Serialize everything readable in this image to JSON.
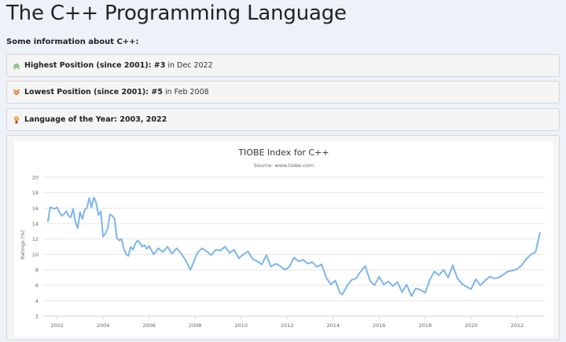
{
  "page": {
    "title": "The C++ Programming Language",
    "intro": "Some information about C++:"
  },
  "info": {
    "highest": {
      "label": "Highest Position (since 2001): #3",
      "detail": "in Dec 2022",
      "icon": "double-chevron-up-icon",
      "color": "#5cb85c"
    },
    "lowest": {
      "label": "Lowest Position (since 2001): #5",
      "detail": "in Feb 2008",
      "icon": "double-chevron-down-icon",
      "color": "#e8711f"
    },
    "loty": {
      "label": "Language of the Year: 2003, 2022",
      "icon": "trophy-icon",
      "color": "#d8a23a"
    }
  },
  "chart_data": {
    "type": "line",
    "title": "TIOBE Index for C++",
    "subtitle": "Source: www.tiobe.com",
    "ylabel": "Ratings (%)",
    "xlabel": "",
    "xlim": [
      2001.4,
      2023.2
    ],
    "ylim": [
      2,
      20
    ],
    "yticks": [
      2,
      4,
      6,
      8,
      10,
      12,
      14,
      16,
      18,
      20
    ],
    "xticks": [
      2002,
      2004,
      2006,
      2008,
      2010,
      2012,
      2014,
      2016,
      2018,
      2020,
      2022
    ],
    "grid": true,
    "legend": "none",
    "line_color": "#7cb5ec",
    "series": [
      {
        "x": [
          2001.6,
          2001.7,
          2001.8,
          2001.9,
          2002.0,
          2002.1,
          2002.2,
          2002.3,
          2002.4,
          2002.5,
          2002.6,
          2002.7,
          2002.8,
          2002.9,
          2003.0,
          2003.1,
          2003.2,
          2003.3,
          2003.4,
          2003.5,
          2003.6,
          2003.7,
          2003.8,
          2003.9,
          2004.0,
          2004.1,
          2004.2,
          2004.3,
          2004.4,
          2004.5,
          2004.6,
          2004.7,
          2004.8,
          2004.9,
          2005.0,
          2005.1,
          2005.2,
          2005.3,
          2005.4,
          2005.5,
          2005.6,
          2005.7,
          2005.8,
          2005.9,
          2006.0,
          2006.2,
          2006.4,
          2006.6,
          2006.8,
          2007.0,
          2007.2,
          2007.4,
          2007.6,
          2007.8,
          2008.0,
          2008.1,
          2008.3,
          2008.5,
          2008.7,
          2008.9,
          2009.1,
          2009.3,
          2009.5,
          2009.7,
          2009.9,
          2010.1,
          2010.3,
          2010.5,
          2010.7,
          2010.9,
          2011.1,
          2011.3,
          2011.5,
          2011.7,
          2011.9,
          2012.1,
          2012.3,
          2012.5,
          2012.7,
          2012.9,
          2013.1,
          2013.3,
          2013.5,
          2013.7,
          2013.9,
          2014.1,
          2014.3,
          2014.4,
          2014.6,
          2014.8,
          2015.0,
          2015.2,
          2015.4,
          2015.6,
          2015.8,
          2016.0,
          2016.2,
          2016.4,
          2016.6,
          2016.8,
          2017.0,
          2017.2,
          2017.4,
          2017.6,
          2017.8,
          2018.0,
          2018.2,
          2018.4,
          2018.6,
          2018.8,
          2019.0,
          2019.2,
          2019.4,
          2019.6,
          2019.8,
          2020.0,
          2020.2,
          2020.4,
          2020.6,
          2020.8,
          2021.0,
          2021.2,
          2021.4,
          2021.6,
          2021.8,
          2022.0,
          2022.2,
          2022.4,
          2022.6,
          2022.8,
          2023.0
        ],
        "y": [
          14.2,
          16.1,
          16.0,
          15.9,
          16.1,
          15.5,
          15.0,
          15.2,
          15.6,
          15.0,
          14.8,
          15.9,
          14.2,
          13.4,
          15.5,
          14.6,
          15.8,
          16.0,
          17.3,
          16.1,
          17.4,
          16.7,
          15.1,
          15.6,
          12.3,
          12.7,
          13.3,
          15.2,
          15.0,
          14.6,
          12.1,
          11.8,
          12.0,
          10.8,
          10.0,
          9.8,
          11.0,
          10.6,
          11.4,
          11.8,
          11.5,
          11.0,
          11.2,
          10.7,
          11.1,
          10.0,
          10.8,
          10.3,
          11.0,
          10.1,
          10.8,
          10.1,
          9.2,
          8.0,
          9.5,
          10.2,
          10.8,
          10.4,
          9.9,
          10.6,
          10.5,
          11.0,
          10.2,
          10.6,
          9.5,
          10.0,
          10.4,
          9.4,
          9.1,
          8.7,
          9.9,
          8.4,
          8.8,
          8.5,
          8.0,
          8.4,
          9.6,
          9.1,
          9.3,
          8.8,
          9.0,
          8.4,
          8.7,
          7.0,
          6.1,
          6.6,
          5.0,
          4.8,
          5.9,
          6.7,
          6.9,
          7.8,
          8.5,
          6.6,
          6.0,
          7.1,
          6.1,
          6.5,
          5.9,
          6.4,
          5.1,
          6.1,
          4.6,
          5.6,
          5.4,
          5.0,
          6.7,
          7.8,
          7.3,
          8.0,
          7.0,
          8.6,
          6.9,
          6.2,
          5.8,
          5.5,
          6.8,
          6.0,
          6.6,
          7.1,
          6.9,
          7.0,
          7.4,
          7.8,
          7.9,
          8.1,
          8.6,
          9.4,
          10.0,
          10.3,
          12.9
        ]
      }
    ]
  }
}
